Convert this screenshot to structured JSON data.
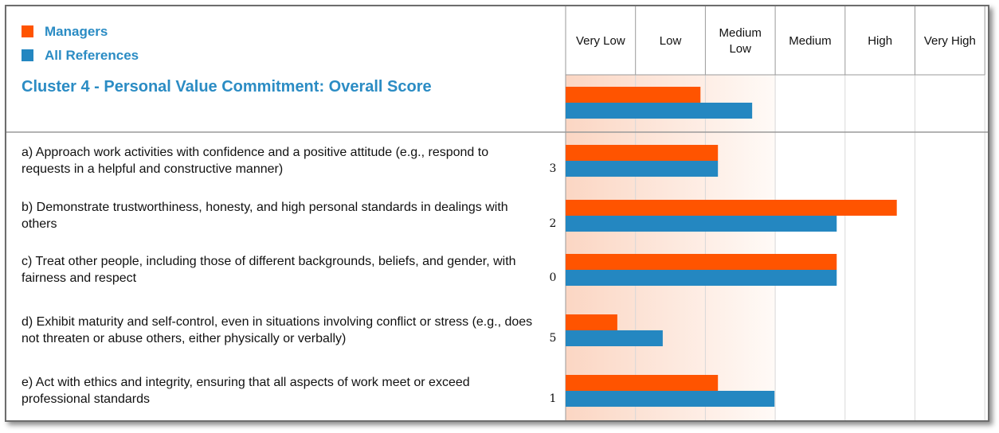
{
  "legend": [
    {
      "label": "Managers",
      "color": "#ff5400"
    },
    {
      "label": "All References",
      "color": "#2487c1"
    }
  ],
  "colors": {
    "accent_text": "#2b8cc4",
    "managers": "#ff5400",
    "all_references": "#2487c1",
    "grid": "#cfcfcf",
    "low_shade": "#fde3d6"
  },
  "chart_data": {
    "type": "bar",
    "orientation": "horizontal",
    "title": "Cluster 4 - Personal Value Commitment: Overall Score",
    "scale_labels": [
      "Very Low",
      "Low",
      "Medium\nLow",
      "Medium",
      "High",
      "Very High"
    ],
    "xlim": [
      0,
      6
    ],
    "overall": {
      "managers": 1.93,
      "all_references": 2.67
    },
    "items": [
      {
        "label": "a) Approach work activities with confidence and a positive attitude (e.g., respond to requests in a helpful and constructive manner)",
        "count": "3",
        "managers": 2.18,
        "all_references": 2.18
      },
      {
        "label": "b) Demonstrate trustworthiness, honesty, and high personal standards in dealings with others",
        "count": "2",
        "managers": 4.74,
        "all_references": 3.88
      },
      {
        "label": "c) Treat other people, including those of different backgrounds, beliefs, and gender, with fairness and respect",
        "count": "0",
        "managers": 3.88,
        "all_references": 3.88
      },
      {
        "label": "d) Exhibit maturity and self-control, even in situations involving conflict or stress (e.g., does not threaten or abuse others, either physically or verbally)",
        "count": "5",
        "managers": 0.74,
        "all_references": 1.39
      },
      {
        "label": "e) Act with ethics and integrity, ensuring that all aspects of work meet or exceed professional standards",
        "count": "1",
        "managers": 2.18,
        "all_references": 2.99
      }
    ]
  }
}
